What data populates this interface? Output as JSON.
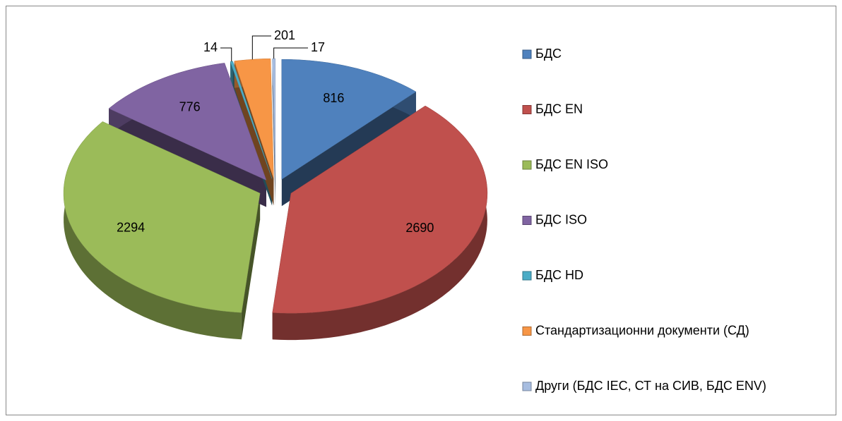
{
  "chart_data": {
    "type": "pie3d",
    "categories": [
      "БДС",
      "БДС EN",
      "БДС EN ISO",
      "БДС ISO",
      "БДС HD",
      "Стандартизационни документи (СД)",
      "Други (БДС IEC, СТ на СИВ, БДС ENV)"
    ],
    "values": [
      816,
      2690,
      2294,
      776,
      14,
      201,
      17
    ],
    "colors": [
      "#4f81bd",
      "#c0504d",
      "#9bbb59",
      "#8064a2",
      "#4bacc6",
      "#f79646",
      "#a7bde0"
    ],
    "legend": "right"
  }
}
